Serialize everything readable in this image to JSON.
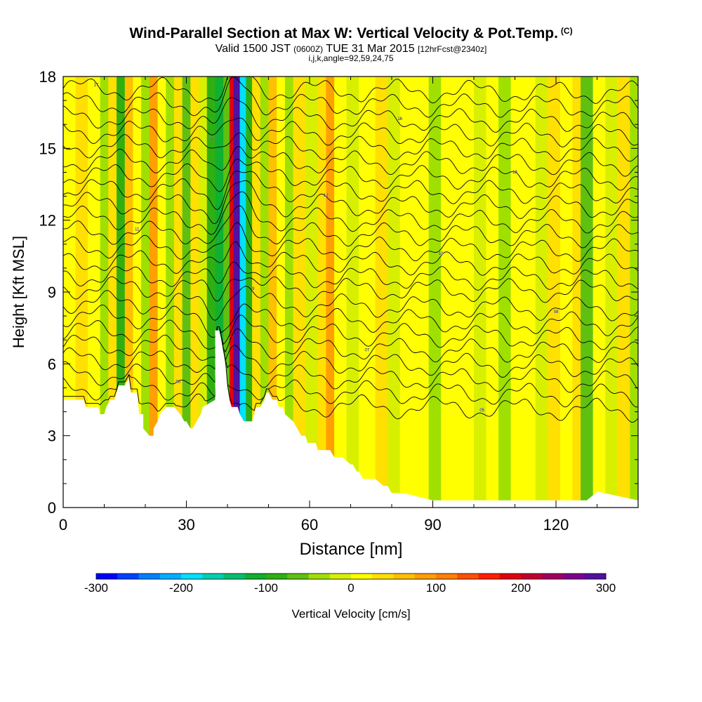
{
  "chart_data": {
    "type": "heatmap",
    "title": "Wind-Parallel Section at Max W: Vertical Velocity & Pot.Temp.",
    "copyright_mark": "(C)",
    "subtitle_parts": [
      "Valid 1500 JST ",
      "(0600Z)",
      " TUE 31 Mar 2015 ",
      "[12hrFcst@2340z]"
    ],
    "subtitle2": "i,j,k,angle=92,59,24,75",
    "xlabel": "Distance [nm]",
    "ylabel": "Height [Kft MSL]",
    "xlim": [
      0,
      140
    ],
    "ylim": [
      0,
      18
    ],
    "xticks": [
      0,
      30,
      60,
      90,
      120
    ],
    "yticks": [
      0,
      3,
      6,
      9,
      12,
      15,
      18
    ],
    "colorbar": {
      "label": "Vertical Velocity [cm/s]",
      "ticks": [
        -300,
        -200,
        -100,
        0,
        100,
        200,
        300
      ],
      "range": [
        -300,
        300
      ],
      "colors": [
        "#0000ff",
        "#0040ff",
        "#0080ff",
        "#00b0ff",
        "#00e0ff",
        "#00d0b0",
        "#00c070",
        "#10b030",
        "#30b010",
        "#60c010",
        "#a0e000",
        "#d8f000",
        "#ffff00",
        "#ffe000",
        "#ffc000",
        "#ffa000",
        "#ff8000",
        "#ff5000",
        "#ff2000",
        "#e00010",
        "#c00030",
        "#a00060",
        "#800090",
        "#5010a0"
      ]
    },
    "terrain_profile": {
      "x": [
        0,
        5,
        5.5,
        8.5,
        9,
        10,
        10.5,
        11.5,
        12.5,
        13,
        13.5,
        15,
        16,
        16.5,
        18,
        18.5,
        19.5,
        19.5,
        21,
        22,
        22,
        23,
        23.5,
        25,
        25.5,
        27,
        28.5,
        29.5,
        30,
        31,
        31.5,
        32.5,
        33.5,
        34,
        37,
        37,
        38,
        38.5,
        39.5,
        40,
        40.5,
        41,
        42.5,
        43,
        44,
        45,
        46,
        46.5,
        47,
        48,
        49,
        49.5,
        50,
        51,
        52,
        52.5,
        53.5,
        54,
        56,
        57,
        58,
        59,
        59.5,
        60,
        61.5,
        62,
        63,
        65,
        66,
        68,
        70,
        70.5,
        71.5,
        72,
        73,
        75,
        76,
        78,
        79,
        80,
        80.5,
        81,
        82,
        83,
        90,
        110,
        127,
        127.5,
        130,
        130.5,
        140
      ],
      "h": [
        4.5,
        4.5,
        4.2,
        4.2,
        3.9,
        3.9,
        4.2,
        4.5,
        4.5,
        4.8,
        5.1,
        5.1,
        5.4,
        4.8,
        4.8,
        3.9,
        3.9,
        3.3,
        3.0,
        3.0,
        3.3,
        3.6,
        3.9,
        4.2,
        4.2,
        4.2,
        3.9,
        3.6,
        3.6,
        3.3,
        3.3,
        3.6,
        3.9,
        4.2,
        4.5,
        7.4,
        7.4,
        7.0,
        6.0,
        5.0,
        4.5,
        4.2,
        4.2,
        3.9,
        3.6,
        3.6,
        3.6,
        3.9,
        4.2,
        4.2,
        4.5,
        4.8,
        4.8,
        4.5,
        4.5,
        4.2,
        4.2,
        3.9,
        3.6,
        3.3,
        3.0,
        3.0,
        2.7,
        2.7,
        2.7,
        2.4,
        2.4,
        2.4,
        2.1,
        2.1,
        1.8,
        1.8,
        1.5,
        1.5,
        1.2,
        1.2,
        1.2,
        0.9,
        0.9,
        0.6,
        0.6,
        0.6,
        0.6,
        0.6,
        0.3,
        0.3,
        0.3,
        0.3,
        0.65,
        0.65,
        0.3,
        0.3
      ]
    },
    "w_columns": [
      {
        "x0": 0,
        "x1": 3,
        "w": 20
      },
      {
        "x0": 3,
        "x1": 6,
        "w": 40
      },
      {
        "x0": 6,
        "x1": 9,
        "w": 15
      },
      {
        "x0": 9,
        "x1": 11,
        "w": -30
      },
      {
        "x0": 11,
        "x1": 13,
        "w": 25
      },
      {
        "x0": 13,
        "x1": 15,
        "w": -90
      },
      {
        "x0": 15,
        "x1": 17,
        "w": 60
      },
      {
        "x0": 17,
        "x1": 19,
        "w": 10
      },
      {
        "x0": 19,
        "x1": 21,
        "w": -40
      },
      {
        "x0": 21,
        "x1": 23,
        "w": 80
      },
      {
        "x0": 23,
        "x1": 25,
        "w": 20
      },
      {
        "x0": 25,
        "x1": 27,
        "w": -50
      },
      {
        "x0": 27,
        "x1": 29,
        "w": 30
      },
      {
        "x0": 29,
        "x1": 31,
        "w": -70
      },
      {
        "x0": 31,
        "x1": 33,
        "w": 40
      },
      {
        "x0": 33,
        "x1": 35,
        "w": -20
      },
      {
        "x0": 35,
        "x1": 37,
        "w": -80
      },
      {
        "x0": 37,
        "x1": 39,
        "w": -120
      },
      {
        "x0": 39,
        "x1": 40.5,
        "w": -60
      },
      {
        "x0": 40.5,
        "x1": 41.5,
        "w": 180
      },
      {
        "x0": 41.5,
        "x1": 43,
        "w": 280
      },
      {
        "x0": 43,
        "x1": 44.5,
        "w": -200
      },
      {
        "x0": 44.5,
        "x1": 46,
        "w": -80
      },
      {
        "x0": 46,
        "x1": 48,
        "w": 40
      },
      {
        "x0": 48,
        "x1": 50,
        "w": -40
      },
      {
        "x0": 50,
        "x1": 52,
        "w": 60
      },
      {
        "x0": 52,
        "x1": 54,
        "w": 20
      },
      {
        "x0": 54,
        "x1": 56,
        "w": -30
      },
      {
        "x0": 56,
        "x1": 59,
        "w": 30
      },
      {
        "x0": 59,
        "x1": 62,
        "w": -20
      },
      {
        "x0": 62,
        "x1": 64,
        "w": 40
      },
      {
        "x0": 64,
        "x1": 66,
        "w": 80
      },
      {
        "x0": 66,
        "x1": 69,
        "w": 10
      },
      {
        "x0": 69,
        "x1": 72,
        "w": -20
      },
      {
        "x0": 72,
        "x1": 76,
        "w": 10
      },
      {
        "x0": 76,
        "x1": 79,
        "w": 40
      },
      {
        "x0": 79,
        "x1": 82,
        "w": -20
      },
      {
        "x0": 82,
        "x1": 86,
        "w": 20
      },
      {
        "x0": 86,
        "x1": 89,
        "w": 10
      },
      {
        "x0": 89,
        "x1": 92,
        "w": -30
      },
      {
        "x0": 92,
        "x1": 96,
        "w": 20
      },
      {
        "x0": 96,
        "x1": 100,
        "w": 5
      },
      {
        "x0": 100,
        "x1": 103,
        "w": -15
      },
      {
        "x0": 103,
        "x1": 106,
        "w": 15
      },
      {
        "x0": 106,
        "x1": 109,
        "w": -30
      },
      {
        "x0": 109,
        "x1": 112,
        "w": 20
      },
      {
        "x0": 112,
        "x1": 115,
        "w": 0
      },
      {
        "x0": 115,
        "x1": 118,
        "w": -20
      },
      {
        "x0": 118,
        "x1": 121,
        "w": 30
      },
      {
        "x0": 121,
        "x1": 124,
        "w": 0
      },
      {
        "x0": 124,
        "x1": 126,
        "w": 40
      },
      {
        "x0": 126,
        "x1": 129,
        "w": -60
      },
      {
        "x0": 129,
        "x1": 132,
        "w": 20
      },
      {
        "x0": 132,
        "x1": 135,
        "w": -20
      },
      {
        "x0": 135,
        "x1": 138,
        "w": 30
      },
      {
        "x0": 138,
        "x1": 140,
        "w": -40
      }
    ],
    "theta_contours": [
      {
        "base": 17.5,
        "label": "17"
      },
      {
        "base": 16.9,
        "label": ""
      },
      {
        "base": 16.3,
        "label": "16"
      },
      {
        "base": 15.7,
        "label": ""
      },
      {
        "base": 15.1,
        "label": "14"
      },
      {
        "base": 14.5,
        "label": ""
      },
      {
        "base": 13.9,
        "label": "13"
      },
      {
        "base": 13.3,
        "label": ""
      },
      {
        "base": 12.7,
        "label": "12"
      },
      {
        "base": 12.1,
        "label": ""
      },
      {
        "base": 11.5,
        "label": "11"
      },
      {
        "base": 10.9,
        "label": ""
      },
      {
        "base": 10.3,
        "label": "10"
      },
      {
        "base": 9.7,
        "label": ""
      },
      {
        "base": 9.2,
        "label": "09"
      },
      {
        "base": 8.6,
        "label": ""
      },
      {
        "base": 8.0,
        "label": "08"
      },
      {
        "base": 7.4,
        "label": ""
      },
      {
        "base": 6.8,
        "label": "07"
      },
      {
        "base": 6.2,
        "label": ""
      },
      {
        "base": 5.6,
        "label": "06"
      },
      {
        "base": 5.0,
        "label": ""
      },
      {
        "base": 4.4,
        "label": "05"
      }
    ]
  }
}
